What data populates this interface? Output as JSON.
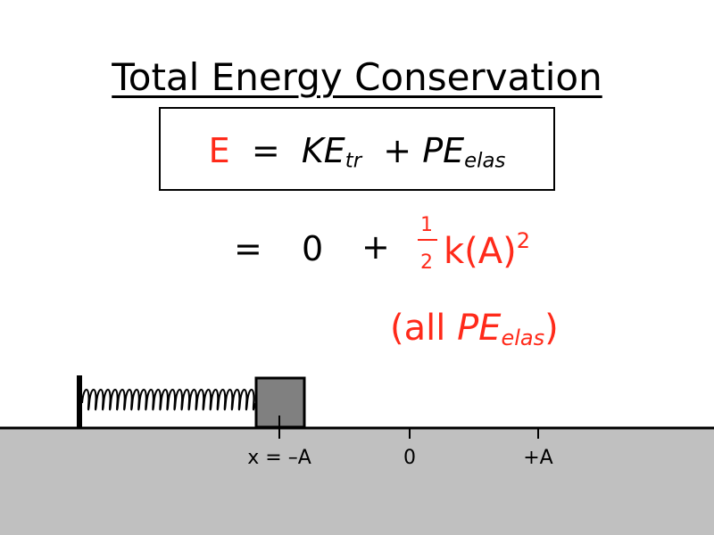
{
  "title": "Total Energy Conservation",
  "equation": {
    "lhs": "E",
    "equals": "=",
    "term1": {
      "base": "KE",
      "sub": "tr"
    },
    "plus": "+",
    "term2": {
      "base": "PE",
      "sub": "elas"
    }
  },
  "substitution": {
    "equals": "=",
    "term1": "0",
    "plus": "+",
    "numerator": "1",
    "denominator": "2",
    "term2": "k(A)",
    "exponent": "2"
  },
  "note": {
    "open": "(all",
    "base": "PE",
    "sub": "elas",
    "close": ")"
  },
  "axis_labels": [
    "x = –A",
    "0",
    "+A"
  ]
}
